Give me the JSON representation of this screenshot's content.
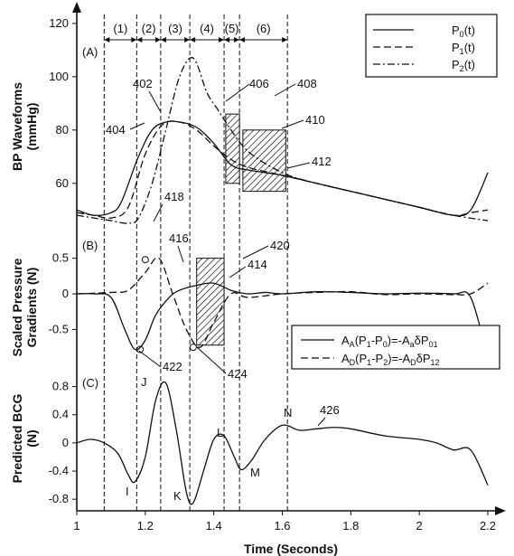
{
  "chart_data": [
    {
      "panel": "(A)",
      "type": "line",
      "ylabel": "BP Waveforms (mmHg)",
      "ylim": [
        45,
        122
      ],
      "yticks": [
        "60",
        "80",
        "100",
        "120"
      ],
      "segments": [
        "(1)",
        "(2)",
        "(3)",
        "(4)",
        "(5)",
        "(6)"
      ],
      "legend": [
        "P0(t)",
        "P1(t)",
        "P2(t)"
      ],
      "refs": [
        "402",
        "404",
        "406",
        "408",
        "410",
        "412"
      ],
      "series": [
        {
          "name": "P0(t)",
          "x": [
            1.0,
            1.05,
            1.1,
            1.13,
            1.18,
            1.22,
            1.26,
            1.3,
            1.35,
            1.4,
            1.45,
            1.5,
            1.6,
            1.7,
            1.8,
            1.9,
            2.0,
            2.1,
            2.15,
            2.2
          ],
          "y": [
            50,
            48,
            49,
            53,
            70,
            80,
            83,
            83,
            81,
            75,
            67,
            65,
            63,
            60,
            57,
            54,
            51,
            48,
            50,
            64
          ]
        },
        {
          "name": "P1(t)",
          "x": [
            1.0,
            1.05,
            1.1,
            1.15,
            1.2,
            1.25,
            1.3,
            1.35,
            1.4,
            1.45,
            1.5,
            1.6,
            1.7,
            1.8,
            1.9,
            2.0,
            2.1,
            2.15,
            2.2
          ],
          "y": [
            49,
            48,
            47,
            51,
            71,
            82,
            83,
            80,
            74,
            69,
            66,
            63,
            60,
            57,
            54,
            51,
            48,
            49,
            50
          ]
        },
        {
          "name": "P2(t)",
          "x": [
            1.0,
            1.05,
            1.1,
            1.15,
            1.18,
            1.22,
            1.26,
            1.3,
            1.34,
            1.38,
            1.41,
            1.44,
            1.5,
            1.6,
            1.7,
            1.8,
            1.9,
            2.0,
            2.1,
            2.2
          ],
          "y": [
            48,
            47,
            46,
            45,
            47,
            60,
            80,
            100,
            107,
            94,
            88,
            82,
            72,
            64,
            60,
            57,
            54,
            51,
            48,
            46
          ]
        }
      ]
    },
    {
      "panel": "(B)",
      "type": "line",
      "ylabel": "Scaled Pressure Gradients (N)",
      "ylim": [
        -0.85,
        0.8
      ],
      "yticks": [
        "0.5",
        "0",
        "-0.5"
      ],
      "legend": [
        "AA(P1-P0)=-AaδP01",
        "AD(P1-P2)=-ADδP12"
      ],
      "refs": [
        "414",
        "416",
        "418",
        "420",
        "422",
        "424"
      ],
      "series": [
        {
          "name": "AA(P1-P0)=-AaδP01",
          "x": [
            1.0,
            1.05,
            1.1,
            1.14,
            1.17,
            1.2,
            1.23,
            1.27,
            1.3,
            1.35,
            1.4,
            1.45,
            1.5,
            1.55,
            1.6,
            1.7,
            1.8,
            1.9,
            2.0,
            2.1,
            2.15,
            2.2
          ],
          "y": [
            0.0,
            0.0,
            -0.05,
            -0.5,
            -0.78,
            -0.65,
            -0.3,
            -0.05,
            0.05,
            0.12,
            0.15,
            0.05,
            0.0,
            0.02,
            0.0,
            0.03,
            0.02,
            0.0,
            0.01,
            0.0,
            -0.05,
            -0.9
          ]
        },
        {
          "name": "AD(P1-P2)=-ADδP12",
          "x": [
            1.0,
            1.1,
            1.15,
            1.2,
            1.24,
            1.28,
            1.32,
            1.36,
            1.4,
            1.45,
            1.5,
            1.6,
            1.7,
            1.8,
            1.9,
            2.0,
            2.1,
            2.15,
            2.2
          ],
          "y": [
            0.0,
            0.02,
            0.05,
            0.3,
            0.5,
            0.0,
            -0.5,
            -0.75,
            -0.4,
            0.0,
            -0.05,
            0.0,
            0.02,
            0.03,
            -0.01,
            0.0,
            -0.01,
            0.0,
            0.15
          ]
        }
      ]
    },
    {
      "panel": "(C)",
      "type": "line",
      "ylabel": "Predicted BCG (N)",
      "xlabel": "Time (Seconds)",
      "ylim": [
        -0.9,
        1.0
      ],
      "xlim": [
        1.0,
        2.2
      ],
      "xticks": [
        "1",
        "1.2",
        "1.4",
        "1.6",
        "1.8",
        "2",
        "2.2"
      ],
      "yticks": [
        "0.8",
        "0.4",
        "0",
        "-0.4",
        "-0.8"
      ],
      "wave_labels": [
        "I",
        "J",
        "K",
        "L",
        "M",
        "N"
      ],
      "refs": [
        "426"
      ],
      "series": [
        {
          "name": "Predicted BCG",
          "x": [
            1.0,
            1.04,
            1.08,
            1.12,
            1.15,
            1.17,
            1.2,
            1.23,
            1.26,
            1.29,
            1.32,
            1.34,
            1.37,
            1.4,
            1.43,
            1.46,
            1.48,
            1.51,
            1.55,
            1.6,
            1.65,
            1.7,
            1.75,
            1.8,
            1.9,
            2.0,
            2.05,
            2.1,
            2.15,
            2.2
          ],
          "y": [
            0.0,
            0.05,
            0.0,
            -0.15,
            -0.45,
            -0.55,
            -0.2,
            0.6,
            0.85,
            0.2,
            -0.7,
            -0.85,
            -0.4,
            0.05,
            0.1,
            -0.2,
            -0.38,
            -0.25,
            0.05,
            0.25,
            0.18,
            0.2,
            0.22,
            0.2,
            0.1,
            0.05,
            0.0,
            -0.1,
            -0.1,
            -0.6
          ]
        }
      ]
    }
  ]
}
